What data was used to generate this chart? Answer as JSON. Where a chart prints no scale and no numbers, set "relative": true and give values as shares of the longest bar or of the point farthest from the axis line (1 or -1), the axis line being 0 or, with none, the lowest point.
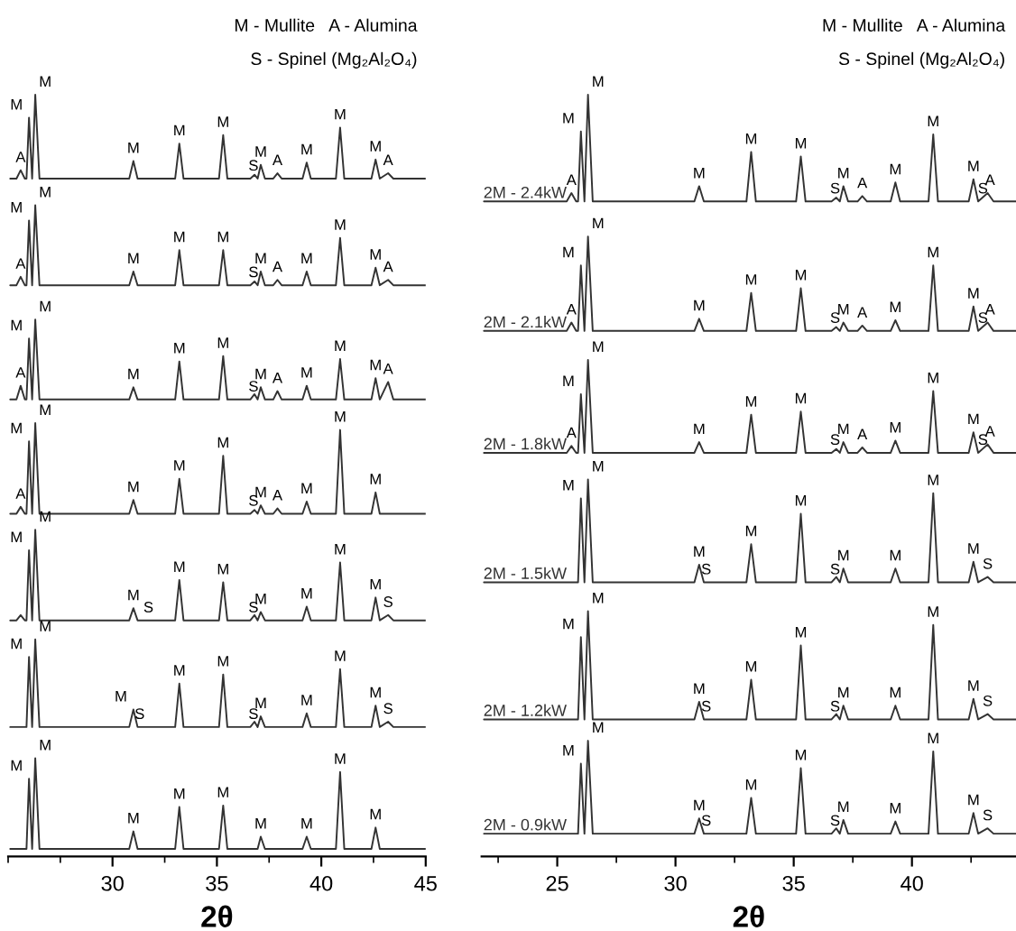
{
  "chart_data": [
    {
      "type": "line",
      "relative": true,
      "xlim": [
        25.0,
        45
      ],
      "xticks": [
        30,
        35,
        40,
        45
      ],
      "xlabel": "2θ",
      "x": [
        25.1,
        25.4,
        25.6,
        25.8,
        25.88,
        26.0,
        26.15,
        26.3,
        26.5,
        30.8,
        31.0,
        31.2,
        33.0,
        33.2,
        33.4,
        35.1,
        35.3,
        35.5,
        36.6,
        36.8,
        36.95,
        37.1,
        37.3,
        37.7,
        37.9,
        38.1,
        39.1,
        39.3,
        39.5,
        40.7,
        40.9,
        41.1,
        42.4,
        42.6,
        42.8,
        43.2,
        43.45,
        45
      ],
      "series": [
        {
          "color": "#333333",
          "values": [
            0.89,
            0.89,
            0.901,
            0.89,
            0.89,
            0.97,
            0.89,
            1.0,
            0.89,
            0.89,
            0.913,
            0.89,
            0.89,
            0.936,
            0.89,
            0.89,
            0.947,
            0.89,
            0.89,
            0.895,
            0.89,
            0.908,
            0.89,
            0.89,
            0.897,
            0.89,
            0.89,
            0.911,
            0.89,
            0.89,
            0.957,
            0.89,
            0.89,
            0.915,
            0.89,
            0.897,
            0.89,
            0.89
          ]
        },
        {
          "color": "#333333",
          "values": [
            0.75,
            0.75,
            0.761,
            0.75,
            0.75,
            0.835,
            0.75,
            0.855,
            0.75,
            0.75,
            0.768,
            0.75,
            0.75,
            0.796,
            0.75,
            0.75,
            0.796,
            0.75,
            0.75,
            0.755,
            0.75,
            0.768,
            0.75,
            0.75,
            0.757,
            0.75,
            0.75,
            0.768,
            0.75,
            0.75,
            0.812,
            0.75,
            0.75,
            0.773,
            0.75,
            0.757,
            0.75,
            0.75
          ]
        },
        {
          "color": "#333333",
          "values": [
            0.6,
            0.6,
            0.618,
            0.6,
            0.6,
            0.68,
            0.6,
            0.705,
            0.6,
            0.6,
            0.616,
            0.6,
            0.6,
            0.65,
            0.6,
            0.6,
            0.657,
            0.6,
            0.6,
            0.607,
            0.6,
            0.616,
            0.6,
            0.6,
            0.611,
            0.6,
            0.6,
            0.618,
            0.6,
            0.6,
            0.653,
            0.6,
            0.6,
            0.628,
            0.6,
            0.623,
            0.6,
            0.6
          ]
        },
        {
          "color": "#333333",
          "values": [
            0.45,
            0.45,
            0.459,
            0.45,
            0.45,
            0.545,
            0.45,
            0.569,
            0.45,
            0.45,
            0.468,
            0.45,
            0.45,
            0.496,
            0.45,
            0.45,
            0.526,
            0.45,
            0.45,
            0.455,
            0.45,
            0.461,
            0.45,
            0.45,
            0.457,
            0.45,
            0.45,
            0.466,
            0.45,
            0.45,
            0.56,
            0.45,
            0.45,
            0.478,
            0.45,
            0.45,
            0.45,
            0.45
          ]
        },
        {
          "color": "#333333",
          "values": [
            0.31,
            0.31,
            0.317,
            0.31,
            0.31,
            0.402,
            0.31,
            0.429,
            0.31,
            0.31,
            0.326,
            0.31,
            0.31,
            0.363,
            0.31,
            0.31,
            0.36,
            0.31,
            0.31,
            0.317,
            0.31,
            0.321,
            0.31,
            0.31,
            0.31,
            0.31,
            0.31,
            0.328,
            0.31,
            0.31,
            0.386,
            0.31,
            0.31,
            0.34,
            0.31,
            0.317,
            0.31,
            0.31
          ]
        },
        {
          "color": "#333333",
          "values": [
            0.17,
            0.17,
            0.17,
            0.17,
            0.17,
            0.262,
            0.17,
            0.285,
            0.17,
            0.17,
            0.193,
            0.17,
            0.17,
            0.227,
            0.17,
            0.17,
            0.239,
            0.17,
            0.17,
            0.177,
            0.17,
            0.184,
            0.17,
            0.17,
            0.17,
            0.17,
            0.17,
            0.188,
            0.17,
            0.17,
            0.246,
            0.17,
            0.17,
            0.198,
            0.17,
            0.177,
            0.17,
            0.17
          ]
        },
        {
          "color": "#333333",
          "values": [
            0.01,
            0.01,
            0.01,
            0.01,
            0.01,
            0.102,
            0.01,
            0.129,
            0.01,
            0.01,
            0.033,
            0.01,
            0.01,
            0.065,
            0.01,
            0.01,
            0.067,
            0.01,
            0.01,
            0.01,
            0.01,
            0.026,
            0.01,
            0.01,
            0.01,
            0.01,
            0.01,
            0.026,
            0.01,
            0.01,
            0.111,
            0.01,
            0.01,
            0.038,
            0.01,
            0.01,
            0.01,
            0.01
          ]
        }
      ],
      "annotations": [
        "M - Mullite   A - Alumina",
        "S - Spinel (Mg₂Al₂O₄)",
        {
          "text": "A",
          "x": 25.6,
          "y": 0.901
        },
        {
          "text": "M",
          "x": 26.0,
          "y": 0.97
        },
        {
          "text": "M",
          "x": 26.3,
          "y": 1.0
        },
        {
          "text": "M",
          "x": 31.0,
          "y": 0.913
        },
        {
          "text": "M",
          "x": 33.2,
          "y": 0.936
        },
        {
          "text": "M",
          "x": 35.3,
          "y": 0.947
        },
        {
          "text": "S",
          "x": 36.75,
          "y": 0.89
        },
        {
          "text": "M",
          "x": 37.1,
          "y": 0.908
        },
        {
          "text": "A",
          "x": 37.9,
          "y": 0.897
        },
        {
          "text": "M",
          "x": 39.3,
          "y": 0.911
        },
        {
          "text": "M",
          "x": 40.9,
          "y": 0.957
        },
        {
          "text": "M",
          "x": 42.6,
          "y": 0.915
        },
        {
          "text": "A",
          "x": 43.2,
          "y": 0.897
        },
        {
          "text": "A",
          "x": 25.6,
          "y": 0.761
        },
        {
          "text": "M",
          "x": 26.0,
          "y": 0.835
        },
        {
          "text": "M",
          "x": 26.3,
          "y": 0.855
        },
        {
          "text": "M",
          "x": 31.0,
          "y": 0.768
        },
        {
          "text": "M",
          "x": 33.2,
          "y": 0.796
        },
        {
          "text": "M",
          "x": 35.3,
          "y": 0.796
        },
        {
          "text": "S",
          "x": 36.75,
          "y": 0.75
        },
        {
          "text": "M",
          "x": 37.1,
          "y": 0.768
        },
        {
          "text": "A",
          "x": 37.9,
          "y": 0.757
        },
        {
          "text": "M",
          "x": 39.3,
          "y": 0.768
        },
        {
          "text": "M",
          "x": 40.9,
          "y": 0.812
        },
        {
          "text": "M",
          "x": 42.6,
          "y": 0.773
        },
        {
          "text": "A",
          "x": 43.2,
          "y": 0.757
        },
        {
          "text": "A",
          "x": 25.6,
          "y": 0.618
        },
        {
          "text": "M",
          "x": 26.0,
          "y": 0.68
        },
        {
          "text": "M",
          "x": 26.3,
          "y": 0.705
        },
        {
          "text": "M",
          "x": 31.0,
          "y": 0.616
        },
        {
          "text": "M",
          "x": 33.2,
          "y": 0.65
        },
        {
          "text": "M",
          "x": 35.3,
          "y": 0.657
        },
        {
          "text": "S",
          "x": 36.75,
          "y": 0.6
        },
        {
          "text": "M",
          "x": 37.1,
          "y": 0.616
        },
        {
          "text": "A",
          "x": 37.9,
          "y": 0.611
        },
        {
          "text": "M",
          "x": 39.3,
          "y": 0.618
        },
        {
          "text": "M",
          "x": 40.9,
          "y": 0.653
        },
        {
          "text": "M",
          "x": 42.6,
          "y": 0.628
        },
        {
          "text": "A",
          "x": 43.2,
          "y": 0.623
        },
        {
          "text": "A",
          "x": 25.6,
          "y": 0.459
        },
        {
          "text": "M",
          "x": 26.0,
          "y": 0.545
        },
        {
          "text": "M",
          "x": 26.3,
          "y": 0.569
        },
        {
          "text": "M",
          "x": 31.0,
          "y": 0.468
        },
        {
          "text": "M",
          "x": 33.2,
          "y": 0.496
        },
        {
          "text": "M",
          "x": 35.3,
          "y": 0.526
        },
        {
          "text": "S",
          "x": 36.75,
          "y": 0.45
        },
        {
          "text": "M",
          "x": 37.1,
          "y": 0.461
        },
        {
          "text": "A",
          "x": 37.9,
          "y": 0.457
        },
        {
          "text": "M",
          "x": 39.3,
          "y": 0.466
        },
        {
          "text": "M",
          "x": 40.9,
          "y": 0.56
        },
        {
          "text": "M",
          "x": 42.6,
          "y": 0.478
        },
        {
          "text": "M",
          "x": 26.0,
          "y": 0.402
        },
        {
          "text": "M",
          "x": 26.3,
          "y": 0.429
        },
        {
          "text": "M",
          "x": 31.0,
          "y": 0.326
        },
        {
          "text": "S",
          "x": 31.3,
          "y": 0.31
        },
        {
          "text": "M",
          "x": 33.2,
          "y": 0.363
        },
        {
          "text": "M",
          "x": 35.3,
          "y": 0.36
        },
        {
          "text": "S",
          "x": 36.75,
          "y": 0.31
        },
        {
          "text": "M",
          "x": 37.1,
          "y": 0.321
        },
        {
          "text": "M",
          "x": 39.3,
          "y": 0.328
        },
        {
          "text": "M",
          "x": 40.9,
          "y": 0.386
        },
        {
          "text": "M",
          "x": 42.6,
          "y": 0.34
        },
        {
          "text": "S",
          "x": 43.2,
          "y": 0.317
        },
        {
          "text": "M",
          "x": 26.0,
          "y": 0.262
        },
        {
          "text": "M",
          "x": 26.3,
          "y": 0.285
        },
        {
          "text": "M",
          "x": 31.0,
          "y": 0.193
        },
        {
          "text": "S",
          "x": 31.3,
          "y": 0.17
        },
        {
          "text": "M",
          "x": 33.2,
          "y": 0.227
        },
        {
          "text": "M",
          "x": 35.3,
          "y": 0.239
        },
        {
          "text": "S",
          "x": 36.75,
          "y": 0.17
        },
        {
          "text": "M",
          "x": 37.1,
          "y": 0.184
        },
        {
          "text": "M",
          "x": 39.3,
          "y": 0.188
        },
        {
          "text": "M",
          "x": 40.9,
          "y": 0.246
        },
        {
          "text": "M",
          "x": 42.6,
          "y": 0.198
        },
        {
          "text": "S",
          "x": 43.2,
          "y": 0.177
        },
        {
          "text": "M",
          "x": 26.0,
          "y": 0.102
        },
        {
          "text": "M",
          "x": 26.3,
          "y": 0.129
        },
        {
          "text": "M",
          "x": 31.0,
          "y": 0.033
        },
        {
          "text": "M",
          "x": 33.2,
          "y": 0.065
        },
        {
          "text": "M",
          "x": 35.3,
          "y": 0.067
        },
        {
          "text": "M",
          "x": 37.1,
          "y": 0.026
        },
        {
          "text": "M",
          "x": 39.3,
          "y": 0.026
        },
        {
          "text": "M",
          "x": 40.9,
          "y": 0.111
        },
        {
          "text": "M",
          "x": 42.6,
          "y": 0.038
        }
      ]
    },
    {
      "type": "line",
      "relative": true,
      "xlim": [
        21.8,
        44.4
      ],
      "xticks": [
        25,
        30,
        35,
        40
      ],
      "xlabel": "2θ",
      "x": [
        21.9,
        25.4,
        25.6,
        25.8,
        25.88,
        26.0,
        26.15,
        26.3,
        26.5,
        30.8,
        31.0,
        31.2,
        33.0,
        33.2,
        33.4,
        35.1,
        35.3,
        35.5,
        36.6,
        36.8,
        36.95,
        37.1,
        37.3,
        37.7,
        37.9,
        38.1,
        39.1,
        39.3,
        39.5,
        40.7,
        40.9,
        41.1,
        42.4,
        42.6,
        42.8,
        43.2,
        43.45,
        44.4
      ],
      "series": [
        {
          "name": "2M - 2.4kW",
          "color": "#333333",
          "values": [
            0.86,
            0.86,
            0.871,
            0.86,
            0.86,
            0.952,
            0.86,
            1.0,
            0.86,
            0.86,
            0.88,
            0.86,
            0.86,
            0.925,
            0.86,
            0.86,
            0.919,
            0.86,
            0.86,
            0.865,
            0.86,
            0.88,
            0.86,
            0.86,
            0.867,
            0.86,
            0.86,
            0.885,
            0.86,
            0.86,
            0.948,
            0.86,
            0.86,
            0.889,
            0.86,
            0.871,
            0.86,
            0.86
          ]
        },
        {
          "name": "2M - 2.1kW",
          "color": "#333333",
          "values": [
            0.69,
            0.69,
            0.701,
            0.69,
            0.69,
            0.776,
            0.69,
            0.814,
            0.69,
            0.69,
            0.706,
            0.69,
            0.69,
            0.74,
            0.69,
            0.69,
            0.746,
            0.69,
            0.69,
            0.695,
            0.69,
            0.701,
            0.69,
            0.69,
            0.697,
            0.69,
            0.69,
            0.704,
            0.69,
            0.69,
            0.776,
            0.69,
            0.69,
            0.722,
            0.69,
            0.701,
            0.69,
            0.69
          ]
        },
        {
          "name": "2M - 1.8kW",
          "color": "#333333",
          "values": [
            0.53,
            0.53,
            0.539,
            0.53,
            0.53,
            0.607,
            0.53,
            0.652,
            0.53,
            0.53,
            0.544,
            0.53,
            0.53,
            0.58,
            0.53,
            0.53,
            0.584,
            0.53,
            0.53,
            0.535,
            0.53,
            0.544,
            0.53,
            0.53,
            0.537,
            0.53,
            0.53,
            0.546,
            0.53,
            0.53,
            0.611,
            0.53,
            0.53,
            0.557,
            0.53,
            0.541,
            0.53,
            0.53
          ]
        },
        {
          "name": "2M - 1.5kW",
          "color": "#333333",
          "values": [
            0.36,
            0.36,
            0.36,
            0.36,
            0.36,
            0.47,
            0.36,
            0.495,
            0.36,
            0.36,
            0.383,
            0.36,
            0.36,
            0.41,
            0.36,
            0.36,
            0.45,
            0.36,
            0.36,
            0.367,
            0.36,
            0.378,
            0.36,
            0.36,
            0.36,
            0.36,
            0.36,
            0.378,
            0.36,
            0.36,
            0.477,
            0.36,
            0.36,
            0.387,
            0.36,
            0.367,
            0.36,
            0.36
          ]
        },
        {
          "name": "2M - 1.2kW",
          "color": "#333333",
          "values": [
            0.18,
            0.18,
            0.18,
            0.18,
            0.18,
            0.288,
            0.18,
            0.322,
            0.18,
            0.18,
            0.203,
            0.18,
            0.18,
            0.232,
            0.18,
            0.18,
            0.277,
            0.18,
            0.18,
            0.187,
            0.18,
            0.198,
            0.18,
            0.18,
            0.18,
            0.18,
            0.18,
            0.198,
            0.18,
            0.18,
            0.304,
            0.18,
            0.18,
            0.207,
            0.18,
            0.187,
            0.18,
            0.18
          ]
        },
        {
          "name": "2M - 0.9kW",
          "color": "#333333",
          "values": [
            0.03,
            0.03,
            0.03,
            0.03,
            0.03,
            0.122,
            0.03,
            0.152,
            0.03,
            0.03,
            0.05,
            0.03,
            0.03,
            0.077,
            0.03,
            0.03,
            0.116,
            0.03,
            0.03,
            0.037,
            0.03,
            0.048,
            0.03,
            0.03,
            0.03,
            0.03,
            0.03,
            0.046,
            0.03,
            0.03,
            0.138,
            0.03,
            0.03,
            0.057,
            0.03,
            0.037,
            0.03,
            0.03
          ]
        }
      ],
      "annotations": [
        "M - Mullite   A - Alumina",
        "S - Spinel (Mg₂Al₂O₄)",
        {
          "text": "A",
          "x": 25.6,
          "y": 0.871
        },
        {
          "text": "M",
          "x": 26.0,
          "y": 0.952
        },
        {
          "text": "M",
          "x": 26.3,
          "y": 1.0
        },
        {
          "text": "M",
          "x": 31.0,
          "y": 0.88
        },
        {
          "text": "M",
          "x": 33.2,
          "y": 0.925
        },
        {
          "text": "M",
          "x": 35.3,
          "y": 0.919
        },
        {
          "text": "S",
          "x": 36.75,
          "y": 0.86
        },
        {
          "text": "M",
          "x": 37.1,
          "y": 0.88
        },
        {
          "text": "A",
          "x": 37.9,
          "y": 0.867
        },
        {
          "text": "M",
          "x": 39.3,
          "y": 0.885
        },
        {
          "text": "M",
          "x": 40.9,
          "y": 0.948
        },
        {
          "text": "M",
          "x": 42.6,
          "y": 0.889
        },
        {
          "text": "S",
          "x": 43.0,
          "y": 0.86
        },
        {
          "text": "A",
          "x": 43.3,
          "y": 0.871
        },
        {
          "text": "A",
          "x": 25.6,
          "y": 0.701
        },
        {
          "text": "M",
          "x": 26.0,
          "y": 0.776
        },
        {
          "text": "M",
          "x": 26.3,
          "y": 0.814
        },
        {
          "text": "M",
          "x": 31.0,
          "y": 0.706
        },
        {
          "text": "M",
          "x": 33.2,
          "y": 0.74
        },
        {
          "text": "M",
          "x": 35.3,
          "y": 0.746
        },
        {
          "text": "S",
          "x": 36.75,
          "y": 0.69
        },
        {
          "text": "M",
          "x": 37.1,
          "y": 0.701
        },
        {
          "text": "A",
          "x": 37.9,
          "y": 0.697
        },
        {
          "text": "M",
          "x": 39.3,
          "y": 0.704
        },
        {
          "text": "M",
          "x": 40.9,
          "y": 0.776
        },
        {
          "text": "M",
          "x": 42.6,
          "y": 0.722
        },
        {
          "text": "S",
          "x": 43.0,
          "y": 0.69
        },
        {
          "text": "A",
          "x": 43.3,
          "y": 0.701
        },
        {
          "text": "A",
          "x": 25.6,
          "y": 0.539
        },
        {
          "text": "M",
          "x": 26.0,
          "y": 0.607
        },
        {
          "text": "M",
          "x": 26.3,
          "y": 0.652
        },
        {
          "text": "M",
          "x": 31.0,
          "y": 0.544
        },
        {
          "text": "M",
          "x": 33.2,
          "y": 0.58
        },
        {
          "text": "M",
          "x": 35.3,
          "y": 0.584
        },
        {
          "text": "S",
          "x": 36.75,
          "y": 0.53
        },
        {
          "text": "M",
          "x": 37.1,
          "y": 0.544
        },
        {
          "text": "A",
          "x": 37.9,
          "y": 0.537
        },
        {
          "text": "M",
          "x": 39.3,
          "y": 0.546
        },
        {
          "text": "M",
          "x": 40.9,
          "y": 0.611
        },
        {
          "text": "M",
          "x": 42.6,
          "y": 0.557
        },
        {
          "text": "S",
          "x": 43.0,
          "y": 0.53
        },
        {
          "text": "A",
          "x": 43.3,
          "y": 0.541
        },
        {
          "text": "M",
          "x": 26.0,
          "y": 0.47
        },
        {
          "text": "M",
          "x": 26.3,
          "y": 0.495
        },
        {
          "text": "M",
          "x": 31.0,
          "y": 0.383
        },
        {
          "text": "S",
          "x": 31.3,
          "y": 0.36
        },
        {
          "text": "M",
          "x": 33.2,
          "y": 0.41
        },
        {
          "text": "M",
          "x": 35.3,
          "y": 0.45
        },
        {
          "text": "S",
          "x": 36.75,
          "y": 0.36
        },
        {
          "text": "M",
          "x": 37.1,
          "y": 0.378
        },
        {
          "text": "M",
          "x": 39.3,
          "y": 0.378
        },
        {
          "text": "M",
          "x": 40.9,
          "y": 0.477
        },
        {
          "text": "M",
          "x": 42.6,
          "y": 0.387
        },
        {
          "text": "S",
          "x": 43.2,
          "y": 0.367
        },
        {
          "text": "M",
          "x": 26.0,
          "y": 0.288
        },
        {
          "text": "M",
          "x": 26.3,
          "y": 0.322
        },
        {
          "text": "M",
          "x": 31.0,
          "y": 0.203
        },
        {
          "text": "S",
          "x": 31.3,
          "y": 0.18
        },
        {
          "text": "M",
          "x": 33.2,
          "y": 0.232
        },
        {
          "text": "M",
          "x": 35.3,
          "y": 0.277
        },
        {
          "text": "S",
          "x": 36.75,
          "y": 0.18
        },
        {
          "text": "M",
          "x": 37.1,
          "y": 0.198
        },
        {
          "text": "M",
          "x": 39.3,
          "y": 0.198
        },
        {
          "text": "M",
          "x": 40.9,
          "y": 0.304
        },
        {
          "text": "M",
          "x": 42.6,
          "y": 0.207
        },
        {
          "text": "S",
          "x": 43.2,
          "y": 0.187
        },
        {
          "text": "M",
          "x": 26.0,
          "y": 0.122
        },
        {
          "text": "M",
          "x": 26.3,
          "y": 0.152
        },
        {
          "text": "M",
          "x": 31.0,
          "y": 0.05
        },
        {
          "text": "S",
          "x": 31.3,
          "y": 0.03
        },
        {
          "text": "M",
          "x": 33.2,
          "y": 0.077
        },
        {
          "text": "M",
          "x": 35.3,
          "y": 0.116
        },
        {
          "text": "S",
          "x": 36.75,
          "y": 0.03
        },
        {
          "text": "M",
          "x": 37.1,
          "y": 0.048
        },
        {
          "text": "M",
          "x": 39.3,
          "y": 0.046
        },
        {
          "text": "M",
          "x": 40.9,
          "y": 0.138
        },
        {
          "text": "M",
          "x": 42.6,
          "y": 0.057
        },
        {
          "text": "S",
          "x": 43.2,
          "y": 0.037
        }
      ]
    }
  ]
}
